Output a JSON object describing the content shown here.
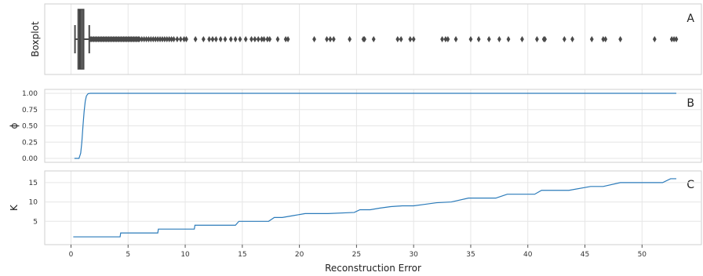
{
  "chart_data": [
    {
      "type": "boxplot",
      "panel_label": "A",
      "ylabel": "Boxplot",
      "color": "#4a4a4a",
      "stats": {
        "min": 0.35,
        "q1": 0.62,
        "median": 0.78,
        "q3": 1.12,
        "max": 1.6
      },
      "outliers": [
        1.7,
        1.8,
        1.9,
        2.0,
        2.1,
        2.2,
        2.3,
        2.4,
        2.5,
        2.6,
        2.7,
        2.8,
        2.9,
        3.0,
        3.1,
        3.2,
        3.3,
        3.4,
        3.5,
        3.6,
        3.7,
        3.8,
        3.9,
        4.0,
        4.1,
        4.2,
        4.3,
        4.4,
        4.5,
        4.6,
        4.7,
        4.8,
        4.9,
        5.0,
        5.1,
        5.2,
        5.3,
        5.4,
        5.5,
        5.6,
        5.7,
        5.8,
        5.9,
        6.0,
        6.2,
        6.4,
        6.6,
        6.8,
        7.0,
        7.2,
        7.4,
        7.6,
        7.8,
        8.0,
        8.2,
        8.4,
        8.6,
        8.8,
        9.0,
        9.3,
        9.6,
        9.9,
        10.1,
        10.9,
        11.6,
        12.1,
        12.4,
        12.7,
        13.1,
        13.5,
        14.0,
        14.4,
        14.8,
        15.3,
        15.8,
        16.1,
        16.4,
        16.7,
        16.9,
        17.2,
        17.4,
        18.1,
        18.8,
        19.0,
        21.3,
        22.4,
        22.7,
        23.0,
        24.4,
        25.6,
        25.7,
        26.5,
        28.6,
        28.9,
        29.7,
        30.0,
        32.5,
        32.8,
        33.0,
        33.7,
        35.0,
        35.7,
        36.6,
        37.5,
        38.3,
        39.5,
        40.8,
        41.4,
        41.5,
        43.2,
        43.9,
        45.6,
        46.6,
        46.8,
        48.1,
        51.1,
        52.6,
        52.8,
        53.0
      ]
    },
    {
      "type": "line",
      "panel_label": "B",
      "ylabel": "ϕ",
      "color": "#2b7bba",
      "ylim": [
        0,
        1
      ],
      "yticks": [
        "0.00",
        "0.25",
        "0.50",
        "0.75",
        "1.00"
      ],
      "x": [
        0.3,
        0.7,
        0.85,
        0.95,
        1.05,
        1.15,
        1.25,
        1.35,
        1.5,
        1.7,
        53.0
      ],
      "y": [
        0.0,
        0.0,
        0.08,
        0.25,
        0.5,
        0.72,
        0.88,
        0.96,
        0.995,
        1.0,
        1.0
      ]
    },
    {
      "type": "line",
      "panel_label": "C",
      "ylabel": "K",
      "color": "#2b7bba",
      "ylim": [
        0,
        17
      ],
      "yticks": [
        "5",
        "10",
        "15"
      ],
      "x": [
        0.2,
        4.3,
        4.35,
        7.6,
        7.65,
        10.8,
        10.85,
        14.4,
        14.7,
        17.3,
        17.8,
        18.5,
        19.5,
        20.5,
        21.5,
        22.5,
        24.8,
        25.3,
        26.2,
        27.0,
        28.0,
        29.0,
        30.0,
        31.0,
        32.0,
        33.3,
        34.8,
        37.2,
        38.2,
        40.6,
        41.2,
        43.6,
        45.5,
        46.6,
        48.1,
        50.3,
        51.8,
        52.5,
        53.0
      ],
      "y": [
        1,
        1,
        2,
        2,
        3,
        3,
        4,
        4,
        5,
        5,
        6,
        6,
        6.5,
        7,
        7,
        7,
        7.3,
        8,
        8,
        8.4,
        8.8,
        9,
        9,
        9.4,
        9.8,
        10,
        11,
        11,
        12,
        12,
        13,
        13,
        14,
        14,
        15,
        15,
        15,
        16,
        16
      ],
      "xlabel": "Reconstruction Error",
      "xticks": [
        0,
        5,
        10,
        15,
        20,
        25,
        30,
        35,
        40,
        45,
        50
      ],
      "xlim": [
        -2.3,
        55.2
      ]
    }
  ]
}
